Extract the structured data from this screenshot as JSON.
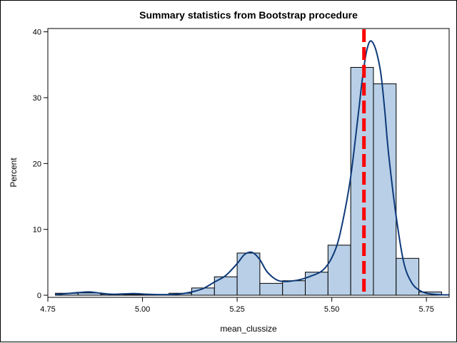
{
  "chart_data": {
    "type": "bar",
    "title": "Summary statistics from Bootstrap procedure",
    "xlabel": "mean_clussize",
    "ylabel": "Percent",
    "xlim": [
      4.75,
      5.81
    ],
    "ylim": [
      0,
      40.5
    ],
    "x_ticks": [
      "4.75",
      "5.00",
      "5.25",
      "5.50",
      "5.75"
    ],
    "y_ticks": [
      "0",
      "10",
      "20",
      "30",
      "40"
    ],
    "bin_width": 0.06,
    "bins": [
      {
        "x": 4.8,
        "value": 0.3
      },
      {
        "x": 4.86,
        "value": 0.35
      },
      {
        "x": 4.92,
        "value": 0.15
      },
      {
        "x": 4.98,
        "value": 0.1
      },
      {
        "x": 5.04,
        "value": 0.1
      },
      {
        "x": 5.1,
        "value": 0.3
      },
      {
        "x": 5.16,
        "value": 1.1
      },
      {
        "x": 5.22,
        "value": 2.8
      },
      {
        "x": 5.28,
        "value": 6.4
      },
      {
        "x": 5.34,
        "value": 1.8
      },
      {
        "x": 5.4,
        "value": 2.2
      },
      {
        "x": 5.46,
        "value": 3.5
      },
      {
        "x": 5.52,
        "value": 7.6
      },
      {
        "x": 5.58,
        "value": 34.6
      },
      {
        "x": 5.64,
        "value": 32.1
      },
      {
        "x": 5.7,
        "value": 5.6
      },
      {
        "x": 5.76,
        "value": 0.5
      }
    ],
    "density_curve": {
      "x": [
        4.77,
        4.8,
        4.83,
        4.86,
        4.89,
        4.92,
        4.95,
        4.98,
        5.01,
        5.04,
        5.07,
        5.1,
        5.13,
        5.16,
        5.19,
        5.22,
        5.25,
        5.27,
        5.29,
        5.31,
        5.33,
        5.36,
        5.4,
        5.44,
        5.48,
        5.51,
        5.53,
        5.55,
        5.57,
        5.58,
        5.59,
        5.6,
        5.61,
        5.62,
        5.63,
        5.64,
        5.65,
        5.67,
        5.69,
        5.71,
        5.73,
        5.75,
        5.78,
        5.81
      ],
      "y": [
        0.1,
        0.25,
        0.4,
        0.5,
        0.3,
        0.15,
        0.2,
        0.25,
        0.15,
        0.1,
        0.1,
        0.2,
        0.5,
        1.0,
        2.0,
        3.0,
        4.8,
        6.2,
        6.5,
        5.4,
        3.5,
        2.2,
        2.2,
        2.8,
        4.0,
        7.0,
        11.5,
        18.0,
        27.5,
        32.5,
        36.5,
        38.5,
        38.2,
        36.5,
        33.5,
        28.0,
        21.5,
        12.0,
        5.0,
        2.0,
        0.8,
        0.3,
        0.1,
        0.05
      ]
    },
    "reference_line": {
      "x": 5.585,
      "color": "#ff0000"
    },
    "bar_fill": "#b8cfe7",
    "bar_stroke": "#000000",
    "curve_color": "#0d3a7a",
    "grid": false
  }
}
